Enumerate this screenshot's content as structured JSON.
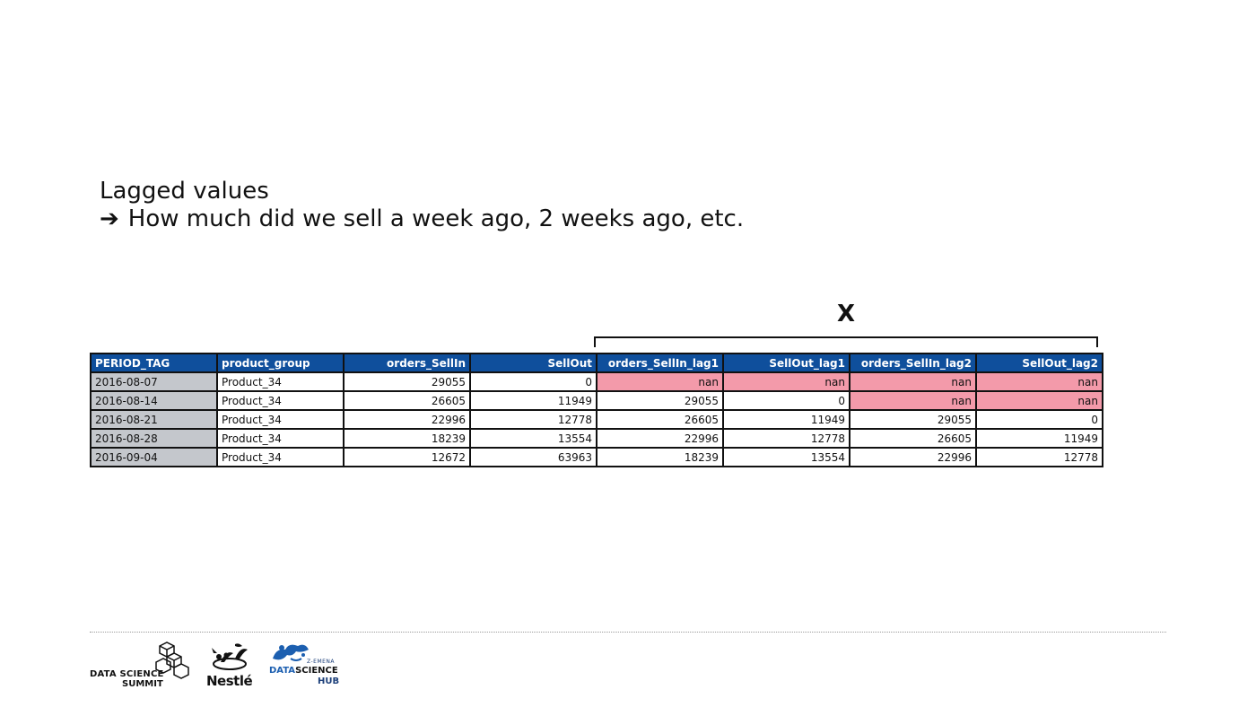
{
  "heading": {
    "line1": "Lagged values",
    "arrow": "➔",
    "line2": "How much did we sell a week ago, 2 weeks ago, etc."
  },
  "x_label": "X",
  "table": {
    "headers": [
      "PERIOD_TAG",
      "product_group",
      "orders_SellIn",
      "SellOut",
      "orders_SellIn_lag1",
      "SellOut_lag1",
      "orders_SellIn_lag2",
      "SellOut_lag2"
    ],
    "rows": [
      [
        "2016-08-07",
        "Product_34",
        "29055",
        "0",
        "nan",
        "nan",
        "nan",
        "nan"
      ],
      [
        "2016-08-14",
        "Product_34",
        "26605",
        "11949",
        "29055",
        "0",
        "nan",
        "nan"
      ],
      [
        "2016-08-21",
        "Product_34",
        "22996",
        "12778",
        "26605",
        "11949",
        "29055",
        "0"
      ],
      [
        "2016-08-28",
        "Product_34",
        "18239",
        "13554",
        "22996",
        "12778",
        "26605",
        "11949"
      ],
      [
        "2016-09-04",
        "Product_34",
        "12672",
        "63963",
        "18239",
        "13554",
        "22996",
        "12778"
      ]
    ]
  },
  "colors": {
    "header_bg": "#0f4f9c",
    "date_bg": "#c4c7cc",
    "nan_bg": "#f39aaa"
  },
  "footer": {
    "logo_dss_line1": "DATA SCIENCE",
    "logo_dss_line2": "SUMMIT",
    "logo_nestle": "Nestlé",
    "logo_hub_top": "Z-EMENA",
    "logo_hub_data": "DATA",
    "logo_hub_science": "SCIENCE",
    "logo_hub_bottom": "HUB"
  }
}
